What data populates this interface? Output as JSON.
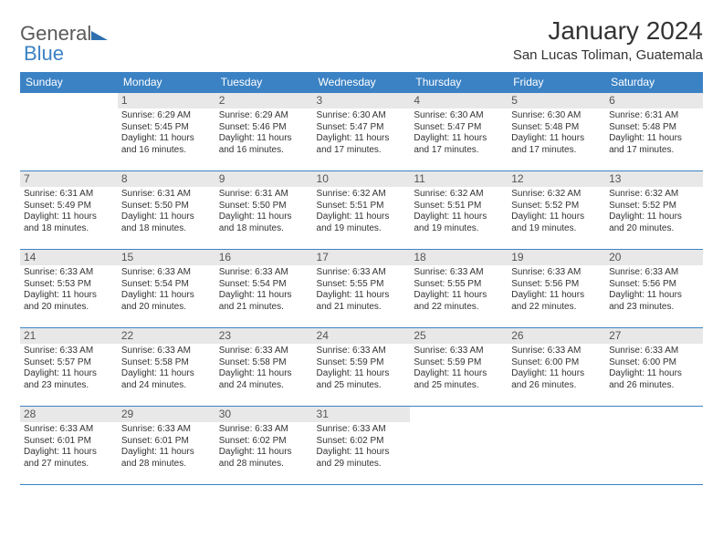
{
  "logo": {
    "word1": "General",
    "word2": "Blue"
  },
  "title": "January 2024",
  "location": "San Lucas Toliman, Guatemala",
  "colors": {
    "header_bg": "#3b82c4",
    "header_text": "#ffffff",
    "daynum_bg": "#e8e8e8",
    "border": "#3b82c4",
    "logo_gray": "#5a5a5a",
    "logo_blue": "#3b82c4"
  },
  "dayNames": [
    "Sunday",
    "Monday",
    "Tuesday",
    "Wednesday",
    "Thursday",
    "Friday",
    "Saturday"
  ],
  "weeks": [
    [
      {
        "n": "",
        "sr": "",
        "ss": "",
        "dl": ""
      },
      {
        "n": "1",
        "sr": "Sunrise: 6:29 AM",
        "ss": "Sunset: 5:45 PM",
        "dl": "Daylight: 11 hours and 16 minutes."
      },
      {
        "n": "2",
        "sr": "Sunrise: 6:29 AM",
        "ss": "Sunset: 5:46 PM",
        "dl": "Daylight: 11 hours and 16 minutes."
      },
      {
        "n": "3",
        "sr": "Sunrise: 6:30 AM",
        "ss": "Sunset: 5:47 PM",
        "dl": "Daylight: 11 hours and 17 minutes."
      },
      {
        "n": "4",
        "sr": "Sunrise: 6:30 AM",
        "ss": "Sunset: 5:47 PM",
        "dl": "Daylight: 11 hours and 17 minutes."
      },
      {
        "n": "5",
        "sr": "Sunrise: 6:30 AM",
        "ss": "Sunset: 5:48 PM",
        "dl": "Daylight: 11 hours and 17 minutes."
      },
      {
        "n": "6",
        "sr": "Sunrise: 6:31 AM",
        "ss": "Sunset: 5:48 PM",
        "dl": "Daylight: 11 hours and 17 minutes."
      }
    ],
    [
      {
        "n": "7",
        "sr": "Sunrise: 6:31 AM",
        "ss": "Sunset: 5:49 PM",
        "dl": "Daylight: 11 hours and 18 minutes."
      },
      {
        "n": "8",
        "sr": "Sunrise: 6:31 AM",
        "ss": "Sunset: 5:50 PM",
        "dl": "Daylight: 11 hours and 18 minutes."
      },
      {
        "n": "9",
        "sr": "Sunrise: 6:31 AM",
        "ss": "Sunset: 5:50 PM",
        "dl": "Daylight: 11 hours and 18 minutes."
      },
      {
        "n": "10",
        "sr": "Sunrise: 6:32 AM",
        "ss": "Sunset: 5:51 PM",
        "dl": "Daylight: 11 hours and 19 minutes."
      },
      {
        "n": "11",
        "sr": "Sunrise: 6:32 AM",
        "ss": "Sunset: 5:51 PM",
        "dl": "Daylight: 11 hours and 19 minutes."
      },
      {
        "n": "12",
        "sr": "Sunrise: 6:32 AM",
        "ss": "Sunset: 5:52 PM",
        "dl": "Daylight: 11 hours and 19 minutes."
      },
      {
        "n": "13",
        "sr": "Sunrise: 6:32 AM",
        "ss": "Sunset: 5:52 PM",
        "dl": "Daylight: 11 hours and 20 minutes."
      }
    ],
    [
      {
        "n": "14",
        "sr": "Sunrise: 6:33 AM",
        "ss": "Sunset: 5:53 PM",
        "dl": "Daylight: 11 hours and 20 minutes."
      },
      {
        "n": "15",
        "sr": "Sunrise: 6:33 AM",
        "ss": "Sunset: 5:54 PM",
        "dl": "Daylight: 11 hours and 20 minutes."
      },
      {
        "n": "16",
        "sr": "Sunrise: 6:33 AM",
        "ss": "Sunset: 5:54 PM",
        "dl": "Daylight: 11 hours and 21 minutes."
      },
      {
        "n": "17",
        "sr": "Sunrise: 6:33 AM",
        "ss": "Sunset: 5:55 PM",
        "dl": "Daylight: 11 hours and 21 minutes."
      },
      {
        "n": "18",
        "sr": "Sunrise: 6:33 AM",
        "ss": "Sunset: 5:55 PM",
        "dl": "Daylight: 11 hours and 22 minutes."
      },
      {
        "n": "19",
        "sr": "Sunrise: 6:33 AM",
        "ss": "Sunset: 5:56 PM",
        "dl": "Daylight: 11 hours and 22 minutes."
      },
      {
        "n": "20",
        "sr": "Sunrise: 6:33 AM",
        "ss": "Sunset: 5:56 PM",
        "dl": "Daylight: 11 hours and 23 minutes."
      }
    ],
    [
      {
        "n": "21",
        "sr": "Sunrise: 6:33 AM",
        "ss": "Sunset: 5:57 PM",
        "dl": "Daylight: 11 hours and 23 minutes."
      },
      {
        "n": "22",
        "sr": "Sunrise: 6:33 AM",
        "ss": "Sunset: 5:58 PM",
        "dl": "Daylight: 11 hours and 24 minutes."
      },
      {
        "n": "23",
        "sr": "Sunrise: 6:33 AM",
        "ss": "Sunset: 5:58 PM",
        "dl": "Daylight: 11 hours and 24 minutes."
      },
      {
        "n": "24",
        "sr": "Sunrise: 6:33 AM",
        "ss": "Sunset: 5:59 PM",
        "dl": "Daylight: 11 hours and 25 minutes."
      },
      {
        "n": "25",
        "sr": "Sunrise: 6:33 AM",
        "ss": "Sunset: 5:59 PM",
        "dl": "Daylight: 11 hours and 25 minutes."
      },
      {
        "n": "26",
        "sr": "Sunrise: 6:33 AM",
        "ss": "Sunset: 6:00 PM",
        "dl": "Daylight: 11 hours and 26 minutes."
      },
      {
        "n": "27",
        "sr": "Sunrise: 6:33 AM",
        "ss": "Sunset: 6:00 PM",
        "dl": "Daylight: 11 hours and 26 minutes."
      }
    ],
    [
      {
        "n": "28",
        "sr": "Sunrise: 6:33 AM",
        "ss": "Sunset: 6:01 PM",
        "dl": "Daylight: 11 hours and 27 minutes."
      },
      {
        "n": "29",
        "sr": "Sunrise: 6:33 AM",
        "ss": "Sunset: 6:01 PM",
        "dl": "Daylight: 11 hours and 28 minutes."
      },
      {
        "n": "30",
        "sr": "Sunrise: 6:33 AM",
        "ss": "Sunset: 6:02 PM",
        "dl": "Daylight: 11 hours and 28 minutes."
      },
      {
        "n": "31",
        "sr": "Sunrise: 6:33 AM",
        "ss": "Sunset: 6:02 PM",
        "dl": "Daylight: 11 hours and 29 minutes."
      },
      {
        "n": "",
        "sr": "",
        "ss": "",
        "dl": ""
      },
      {
        "n": "",
        "sr": "",
        "ss": "",
        "dl": ""
      },
      {
        "n": "",
        "sr": "",
        "ss": "",
        "dl": ""
      }
    ]
  ]
}
